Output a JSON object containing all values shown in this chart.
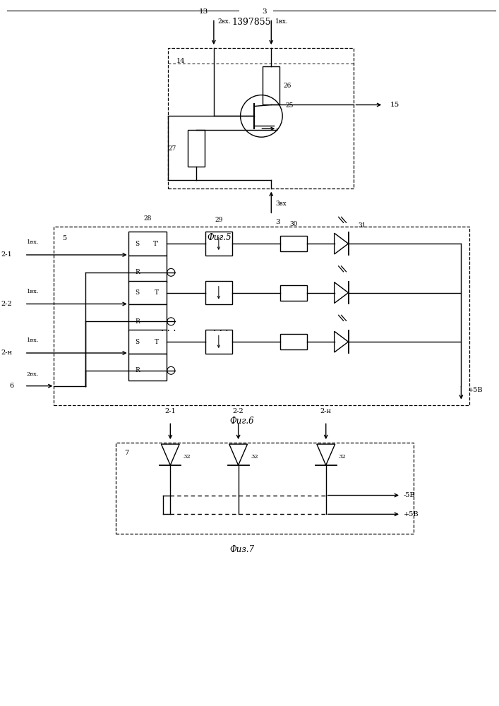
{
  "title": "1397855",
  "bg_color": "#ffffff",
  "line_color": "#000000",
  "fig5_caption": "Фиг.5",
  "fig6_caption": "Фиг.6",
  "fig7_caption": "Физ.7"
}
